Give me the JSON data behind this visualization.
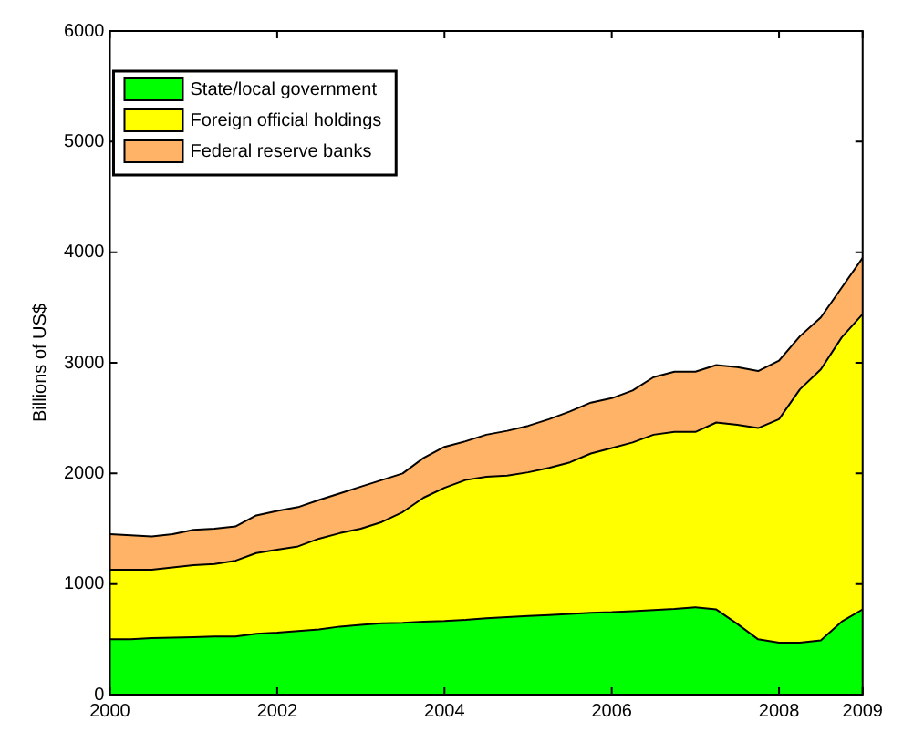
{
  "chart_data": {
    "type": "area",
    "stacked": true,
    "ylabel": "Billions of US$",
    "x": [
      2000,
      2000.25,
      2000.5,
      2000.75,
      2001,
      2001.25,
      2001.5,
      2001.75,
      2002,
      2002.25,
      2002.5,
      2002.75,
      2003,
      2003.25,
      2003.5,
      2003.75,
      2004,
      2004.25,
      2004.5,
      2004.75,
      2005,
      2005.25,
      2005.5,
      2005.75,
      2006,
      2006.25,
      2006.5,
      2006.75,
      2007,
      2007.25,
      2007.5,
      2007.75,
      2008,
      2008.25,
      2008.5,
      2008.75,
      2009
    ],
    "series": [
      {
        "name": "State/local government",
        "color": "#00ff00",
        "values": [
          500,
          500,
          510,
          515,
          520,
          525,
          525,
          550,
          560,
          575,
          590,
          615,
          630,
          645,
          650,
          660,
          665,
          675,
          690,
          700,
          710,
          720,
          730,
          740,
          745,
          755,
          765,
          775,
          790,
          770,
          640,
          500,
          470,
          470,
          490,
          660,
          770
        ]
      },
      {
        "name": "Foreign official holdings",
        "color": "#ffff00",
        "values": [
          630,
          630,
          620,
          635,
          650,
          655,
          685,
          730,
          750,
          765,
          820,
          845,
          870,
          915,
          1000,
          1120,
          1205,
          1265,
          1280,
          1280,
          1300,
          1330,
          1370,
          1440,
          1485,
          1525,
          1585,
          1600,
          1585,
          1690,
          1800,
          1910,
          2020,
          2290,
          2450,
          2570,
          2670
        ]
      },
      {
        "name": "Federal reserve banks",
        "color": "#ffb366",
        "values": [
          320,
          310,
          300,
          300,
          320,
          320,
          310,
          340,
          350,
          355,
          350,
          360,
          380,
          380,
          350,
          360,
          370,
          350,
          380,
          405,
          420,
          440,
          460,
          460,
          450,
          470,
          520,
          545,
          545,
          520,
          520,
          515,
          530,
          480,
          470,
          450,
          510
        ]
      }
    ],
    "xlim": [
      2000,
      2009
    ],
    "xticks": [
      2000,
      2002,
      2004,
      2006,
      2008,
      2009
    ],
    "ylim": [
      0,
      6000
    ],
    "yticks": [
      0,
      1000,
      2000,
      3000,
      4000,
      5000,
      6000
    ],
    "grid": false,
    "legend": "top left"
  }
}
